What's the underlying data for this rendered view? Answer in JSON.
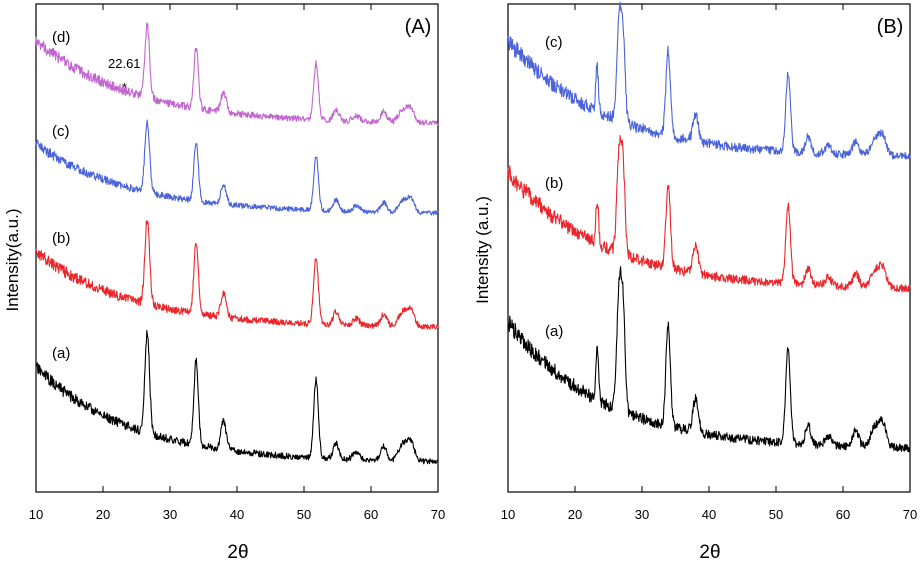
{
  "chart_data": [
    {
      "type": "line",
      "panel_label": "(A)",
      "xlabel": "2θ",
      "ylabel": "Intensity(a.u.)",
      "xlim": [
        10,
        70
      ],
      "x_ticks": [
        10,
        20,
        30,
        40,
        50,
        60,
        70
      ],
      "y_ticks_shown": false,
      "peak_positions_2theta": [
        26.6,
        33.9,
        38.0,
        51.8,
        54.8,
        57.8,
        61.9,
        64.7,
        65.9
      ],
      "annotation": {
        "text": "22.61",
        "marker": "*",
        "x": 22.61
      },
      "series": [
        {
          "name": "(a)",
          "color": "#000000"
        },
        {
          "name": "(b)",
          "color": "#e8262b"
        },
        {
          "name": "(c)",
          "color": "#4a63d8"
        },
        {
          "name": "(d)",
          "color": "#c265d0"
        }
      ]
    },
    {
      "type": "line",
      "panel_label": "(B)",
      "xlabel": "2θ",
      "ylabel": "Intensity (a.u.)",
      "xlim": [
        10,
        70
      ],
      "x_ticks": [
        10,
        20,
        30,
        40,
        50,
        60,
        70
      ],
      "y_ticks_shown": false,
      "peak_positions_2theta": [
        23.3,
        26.6,
        27.2,
        33.9,
        38.0,
        51.8,
        54.8,
        57.8,
        61.9,
        64.7,
        65.9
      ],
      "series": [
        {
          "name": "(a)",
          "color": "#000000"
        },
        {
          "name": "(b)",
          "color": "#e8262b"
        },
        {
          "name": "(c)",
          "color": "#4a63d8"
        }
      ]
    }
  ]
}
